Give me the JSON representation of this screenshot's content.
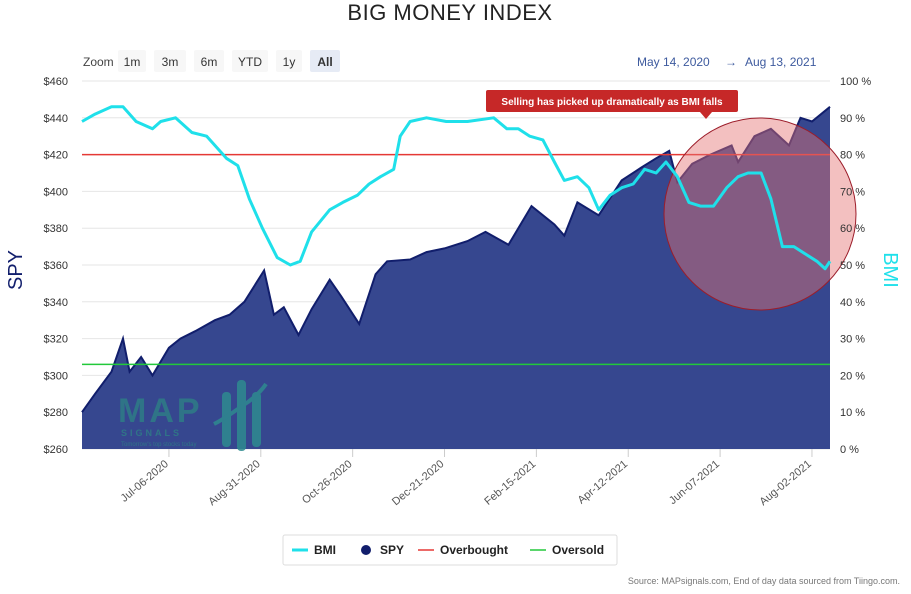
{
  "colors": {
    "bmi": "#1fe0ea",
    "spy_fill": "#36478f",
    "spy_line": "#111e6c",
    "overbought": "#e53935",
    "oversold": "#22c93a",
    "annotation_bg": "#c62828",
    "circle_fill": "#e57373",
    "range_text": "#3d5a9e"
  },
  "toolbar": {
    "zoom_label": "Zoom",
    "buttons": [
      "1m",
      "3m",
      "6m",
      "YTD",
      "1y",
      "All"
    ],
    "active": "All",
    "range_from": "May 14, 2020",
    "range_arrow": "→",
    "range_to": "Aug 13, 2021"
  },
  "chart_data": {
    "type": "area",
    "title": "BIG MONEY INDEX",
    "x_range": [
      "2020-05-14",
      "2021-08-13"
    ],
    "x_ticks": [
      "Jul-06-2020",
      "Aug-31-2020",
      "Oct-26-2020",
      "Dec-21-2020",
      "Feb-15-2021",
      "Apr-12-2021",
      "Jun-07-2021",
      "Aug-02-2021"
    ],
    "y_left": {
      "label": "SPY",
      "ticks": [
        "$260",
        "$280",
        "$300",
        "$320",
        "$340",
        "$360",
        "$380",
        "$400",
        "$420",
        "$440",
        "$460"
      ],
      "range": [
        260,
        460
      ]
    },
    "y_right": {
      "label": "BMI",
      "ticks": [
        "0 %",
        "10 %",
        "20 %",
        "30 %",
        "40 %",
        "50 %",
        "60 %",
        "70 %",
        "80 %",
        "90 %",
        "100 %"
      ],
      "range": [
        0,
        100
      ]
    },
    "overbought_level": 80,
    "oversold_level": 23,
    "annotation": "Selling has picked up dramatically as BMI falls",
    "legend": [
      "BMI",
      "SPY",
      "Overbought",
      "Oversold"
    ],
    "legend_position": "bottom-center",
    "series": [
      {
        "name": "SPY",
        "axis": "left",
        "points": [
          [
            "2020-05-14",
            280
          ],
          [
            "2020-05-22",
            290
          ],
          [
            "2020-06-01",
            302
          ],
          [
            "2020-06-08",
            320
          ],
          [
            "2020-06-12",
            302
          ],
          [
            "2020-06-19",
            310
          ],
          [
            "2020-06-26",
            300
          ],
          [
            "2020-07-06",
            315
          ],
          [
            "2020-07-13",
            320
          ],
          [
            "2020-07-22",
            324
          ],
          [
            "2020-08-03",
            330
          ],
          [
            "2020-08-12",
            333
          ],
          [
            "2020-08-21",
            340
          ],
          [
            "2020-09-02",
            357
          ],
          [
            "2020-09-08",
            333
          ],
          [
            "2020-09-14",
            337
          ],
          [
            "2020-09-23",
            322
          ],
          [
            "2020-10-01",
            336
          ],
          [
            "2020-10-12",
            352
          ],
          [
            "2020-10-19",
            343
          ],
          [
            "2020-10-30",
            328
          ],
          [
            "2020-11-09",
            355
          ],
          [
            "2020-11-16",
            362
          ],
          [
            "2020-11-30",
            363
          ],
          [
            "2020-12-10",
            367
          ],
          [
            "2020-12-21",
            369
          ],
          [
            "2021-01-04",
            373
          ],
          [
            "2021-01-15",
            378
          ],
          [
            "2021-01-29",
            371
          ],
          [
            "2021-02-12",
            392
          ],
          [
            "2021-02-26",
            382
          ],
          [
            "2021-03-04",
            376
          ],
          [
            "2021-03-12",
            394
          ],
          [
            "2021-03-25",
            387
          ],
          [
            "2021-04-08",
            406
          ],
          [
            "2021-04-20",
            413
          ],
          [
            "2021-04-29",
            418
          ],
          [
            "2021-05-07",
            422
          ],
          [
            "2021-05-12",
            405
          ],
          [
            "2021-05-21",
            415
          ],
          [
            "2021-06-01",
            420
          ],
          [
            "2021-06-14",
            425
          ],
          [
            "2021-06-18",
            416
          ],
          [
            "2021-06-28",
            430
          ],
          [
            "2021-07-08",
            434
          ],
          [
            "2021-07-19",
            425
          ],
          [
            "2021-07-26",
            440
          ],
          [
            "2021-08-02",
            438
          ],
          [
            "2021-08-13",
            446
          ]
        ]
      },
      {
        "name": "BMI",
        "axis": "right",
        "points": [
          [
            "2020-05-14",
            89
          ],
          [
            "2020-05-22",
            91
          ],
          [
            "2020-06-01",
            93
          ],
          [
            "2020-06-08",
            93
          ],
          [
            "2020-06-16",
            89
          ],
          [
            "2020-06-26",
            87
          ],
          [
            "2020-07-01",
            89
          ],
          [
            "2020-07-10",
            90
          ],
          [
            "2020-07-20",
            86
          ],
          [
            "2020-07-29",
            85
          ],
          [
            "2020-08-10",
            79
          ],
          [
            "2020-08-17",
            77
          ],
          [
            "2020-08-24",
            68
          ],
          [
            "2020-09-01",
            60
          ],
          [
            "2020-09-10",
            52
          ],
          [
            "2020-09-18",
            50
          ],
          [
            "2020-09-24",
            51
          ],
          [
            "2020-10-01",
            59
          ],
          [
            "2020-10-12",
            65
          ],
          [
            "2020-10-20",
            67
          ],
          [
            "2020-10-29",
            69
          ],
          [
            "2020-11-05",
            72
          ],
          [
            "2020-11-12",
            74
          ],
          [
            "2020-11-20",
            76
          ],
          [
            "2020-11-24",
            85
          ],
          [
            "2020-11-30",
            89
          ],
          [
            "2020-12-10",
            90
          ],
          [
            "2020-12-22",
            89
          ],
          [
            "2021-01-04",
            89
          ],
          [
            "2021-01-20",
            90
          ],
          [
            "2021-01-28",
            87
          ],
          [
            "2021-02-04",
            87
          ],
          [
            "2021-02-11",
            85
          ],
          [
            "2021-02-19",
            84
          ],
          [
            "2021-02-26",
            78
          ],
          [
            "2021-03-04",
            73
          ],
          [
            "2021-03-12",
            74
          ],
          [
            "2021-03-19",
            71
          ],
          [
            "2021-03-25",
            65
          ],
          [
            "2021-04-01",
            69
          ],
          [
            "2021-04-08",
            71
          ],
          [
            "2021-04-15",
            72
          ],
          [
            "2021-04-22",
            76
          ],
          [
            "2021-04-29",
            75
          ],
          [
            "2021-05-05",
            78
          ],
          [
            "2021-05-12",
            74
          ],
          [
            "2021-05-19",
            67
          ],
          [
            "2021-05-26",
            66
          ],
          [
            "2021-06-03",
            66
          ],
          [
            "2021-06-11",
            71
          ],
          [
            "2021-06-18",
            74
          ],
          [
            "2021-06-24",
            75
          ],
          [
            "2021-07-02",
            75
          ],
          [
            "2021-07-08",
            68
          ],
          [
            "2021-07-15",
            55
          ],
          [
            "2021-07-22",
            55
          ],
          [
            "2021-07-29",
            53
          ],
          [
            "2021-08-05",
            51
          ],
          [
            "2021-08-10",
            49
          ],
          [
            "2021-08-13",
            51
          ]
        ]
      }
    ]
  },
  "source_text": "Source: MAPsignals.com, End of day data sourced from Tiingo.com.",
  "logo": {
    "text": "MAP",
    "subtitle": "SIGNALS",
    "tagline": "Tomorrow's top stocks today"
  }
}
